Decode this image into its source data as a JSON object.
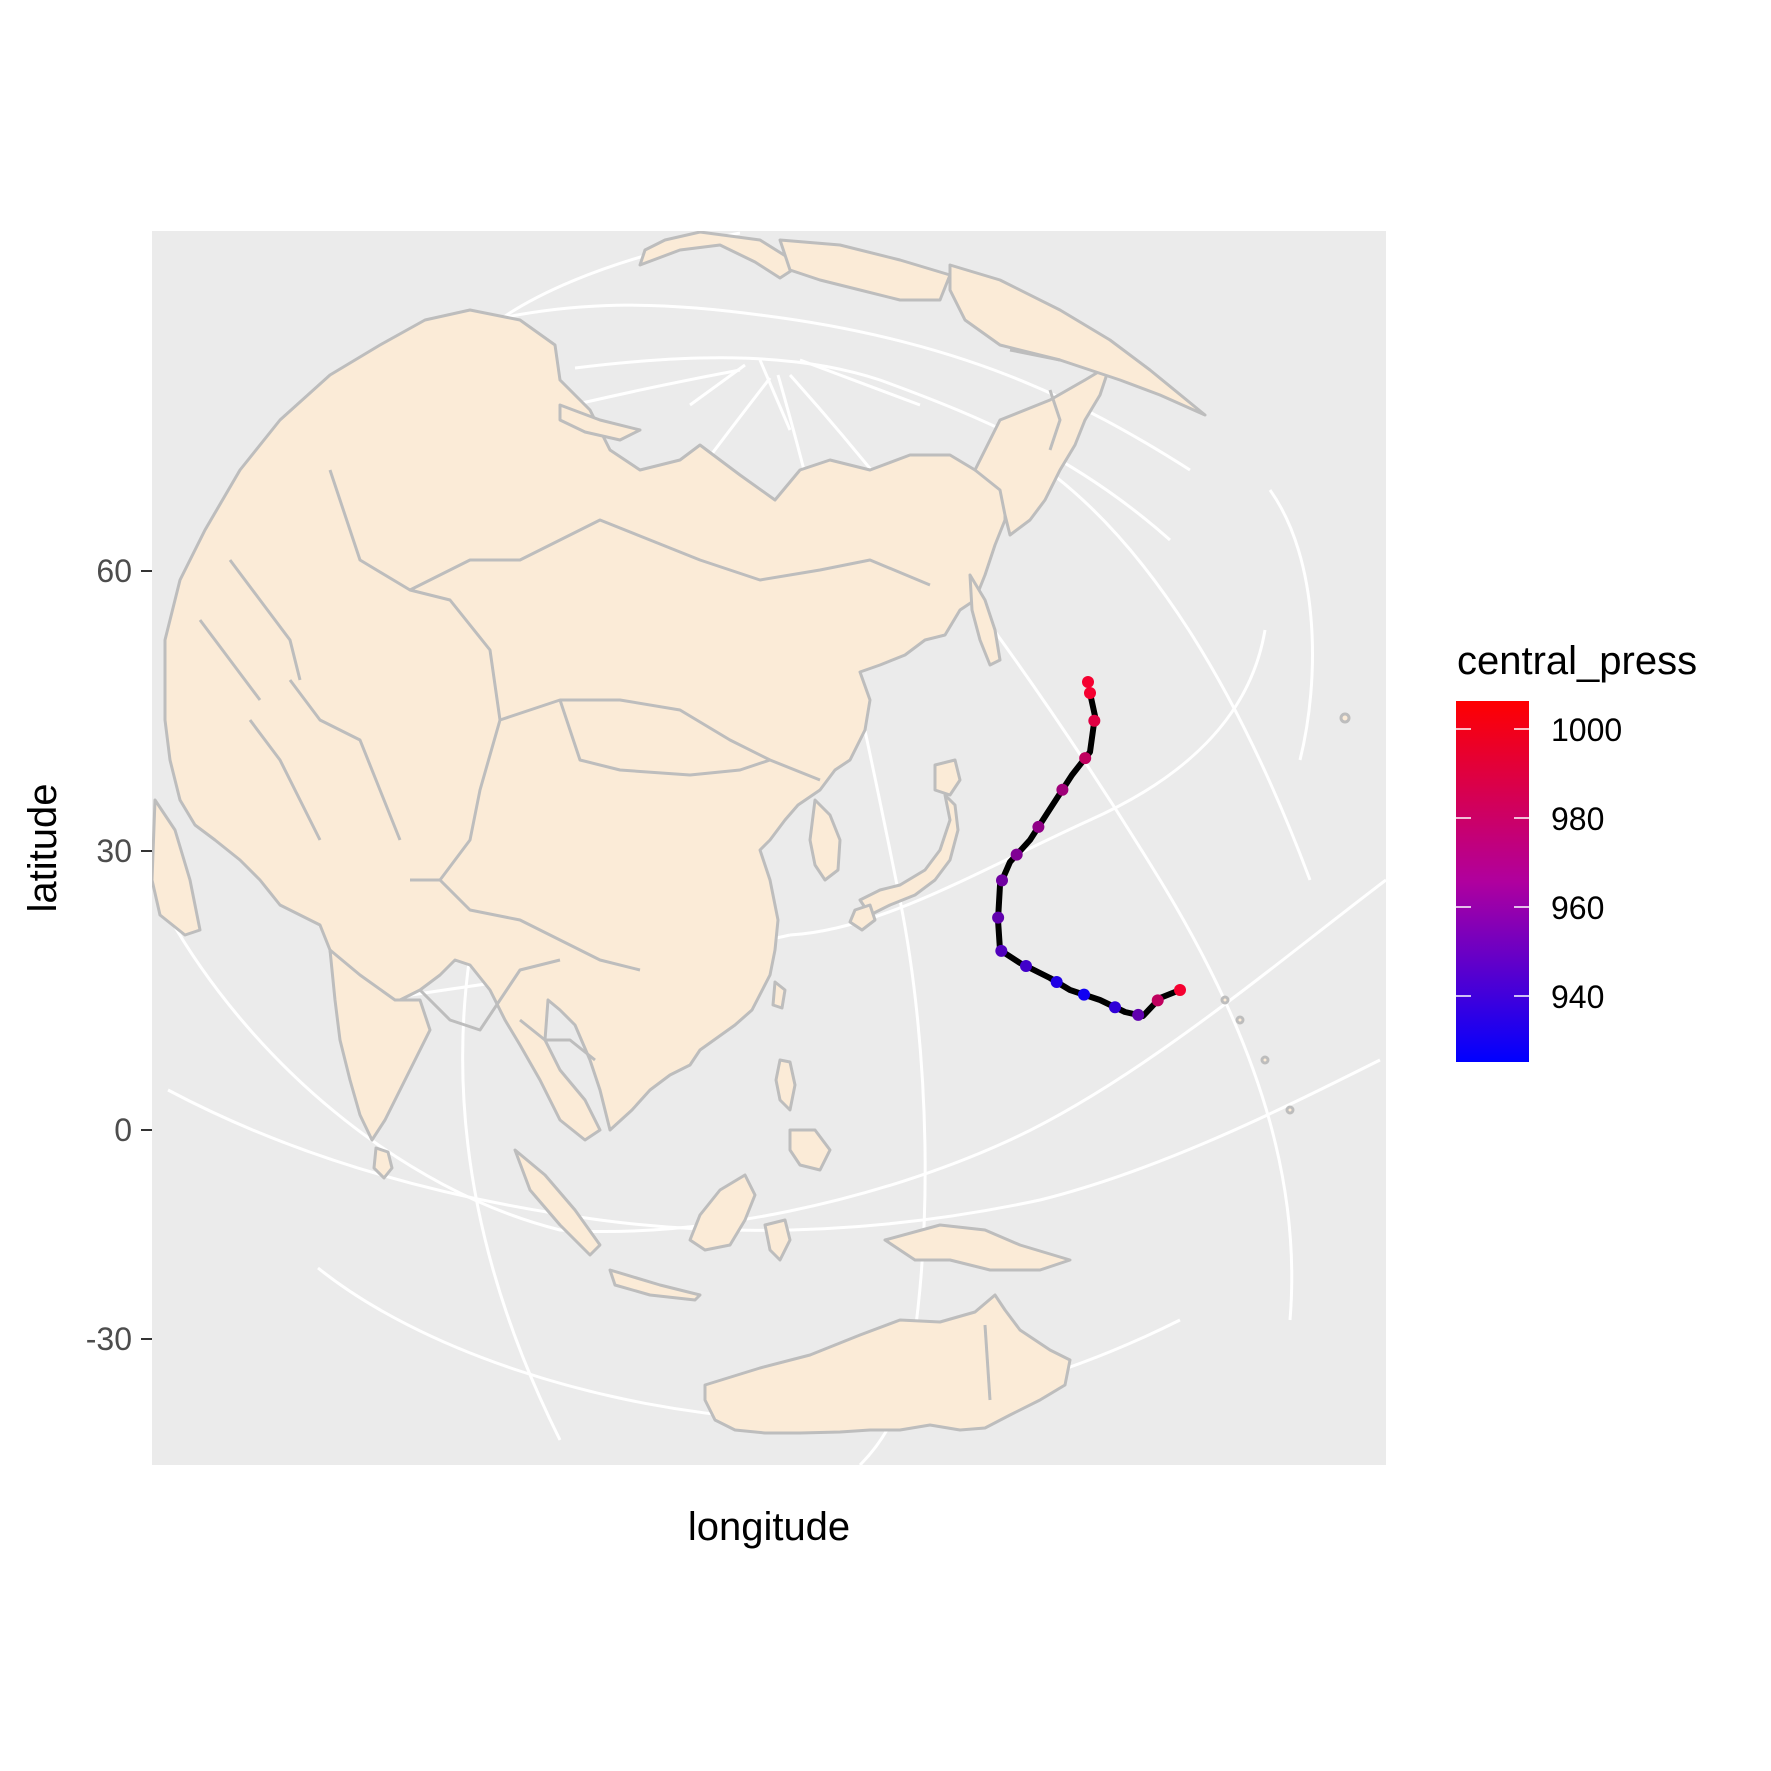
{
  "axes": {
    "xlabel": "longitude",
    "ylabel": "latitude",
    "y_ticks": [
      "60",
      "30",
      "0",
      "-30"
    ]
  },
  "legend": {
    "title": "central_press",
    "labels": [
      "1000",
      "980",
      "960",
      "940"
    ],
    "color_low": "#0000ff",
    "color_high": "#ff0000"
  },
  "colors": {
    "panel_bg": "#ebebeb",
    "land_fill": "#fbebd7",
    "land_stroke": "#bdbdbd",
    "graticule": "#ffffff",
    "track": "#000000"
  },
  "chart_data": {
    "type": "map",
    "projection": "orthographic",
    "grid": true,
    "legend_position": "right",
    "y_ticks": [
      60,
      30,
      0,
      -30
    ],
    "color_scale": {
      "variable": "central_press",
      "range": [
        925,
        1005
      ],
      "low": "#0000ff",
      "high": "#ff0000"
    },
    "track": [
      {
        "lon": 145.3,
        "lat": 14.0,
        "central_press": 1002
      },
      {
        "lon": 143.5,
        "lat": 13.5,
        "central_press": 985
      },
      {
        "lon": 141.5,
        "lat": 13.2,
        "central_press": 955
      },
      {
        "lon": 139.5,
        "lat": 13.8,
        "central_press": 940
      },
      {
        "lon": 137.0,
        "lat": 14.8,
        "central_press": 930
      },
      {
        "lon": 134.5,
        "lat": 16.0,
        "central_press": 935
      },
      {
        "lon": 132.8,
        "lat": 17.2,
        "central_press": 945
      },
      {
        "lon": 132.6,
        "lat": 19.5,
        "central_press": 950
      },
      {
        "lon": 132.8,
        "lat": 22.5,
        "central_press": 955
      },
      {
        "lon": 133.8,
        "lat": 25.2,
        "central_press": 960
      },
      {
        "lon": 135.4,
        "lat": 28.5,
        "central_press": 965
      },
      {
        "lon": 137.0,
        "lat": 32.5,
        "central_press": 970
      },
      {
        "lon": 138.4,
        "lat": 36.0,
        "central_press": 975
      },
      {
        "lon": 139.6,
        "lat": 38.5,
        "central_press": 985
      },
      {
        "lon": 139.5,
        "lat": 41.5,
        "central_press": 995
      },
      {
        "lon": 139.2,
        "lat": 45.0,
        "central_press": 1002
      }
    ]
  }
}
